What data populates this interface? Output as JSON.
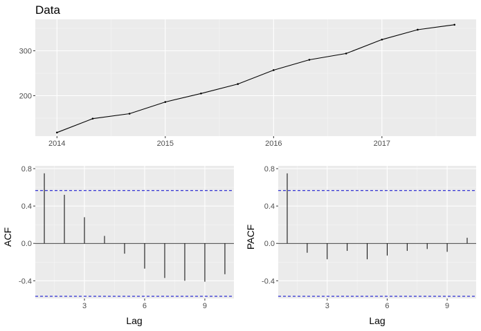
{
  "chart_data": [
    {
      "type": "line",
      "title": "Data",
      "xlabel": "",
      "ylabel": "",
      "xlim": [
        2013.8,
        2017.87
      ],
      "ylim": [
        110,
        370
      ],
      "x_ticks": [
        2014,
        2015,
        2016,
        2017
      ],
      "y_ticks": [
        200,
        300
      ],
      "grid": true,
      "x": [
        2014.0,
        2014.33,
        2014.67,
        2015.0,
        2015.33,
        2015.67,
        2016.0,
        2016.33,
        2016.67,
        2017.0,
        2017.33,
        2017.67
      ],
      "values": [
        118,
        149,
        160,
        186,
        205,
        226,
        257,
        280,
        294,
        325,
        347,
        358
      ],
      "series_color": "#000000"
    },
    {
      "type": "bar",
      "ylabel": "ACF",
      "xlabel": "Lag",
      "xlim": [
        0.55,
        10.45
      ],
      "ylim": [
        -0.59,
        0.83
      ],
      "x_ticks": [
        3,
        6,
        9
      ],
      "y_ticks": [
        -0.4,
        0.0,
        0.4,
        0.8
      ],
      "y_tick_labels": [
        "-0.4",
        "0.0",
        "0.4",
        "0.8"
      ],
      "grid": true,
      "lags": [
        1,
        2,
        3,
        4,
        5,
        6,
        7,
        8,
        9,
        10
      ],
      "values": [
        0.75,
        0.52,
        0.28,
        0.08,
        -0.11,
        -0.27,
        -0.37,
        -0.4,
        -0.41,
        -0.33
      ],
      "confidence_bound": 0.566,
      "bound_color": "#0000cc"
    },
    {
      "type": "bar",
      "ylabel": "PACF",
      "xlabel": "Lag",
      "xlim": [
        0.55,
        10.45
      ],
      "ylim": [
        -0.59,
        0.83
      ],
      "x_ticks": [
        3,
        6,
        9
      ],
      "y_ticks": [
        -0.4,
        0.0,
        0.4,
        0.8
      ],
      "y_tick_labels": [
        "-0.4",
        "0.0",
        "0.4",
        "0.8"
      ],
      "grid": true,
      "lags": [
        1,
        2,
        3,
        4,
        5,
        6,
        7,
        8,
        9,
        10
      ],
      "values": [
        0.75,
        -0.1,
        -0.17,
        -0.08,
        -0.17,
        -0.13,
        -0.08,
        -0.06,
        -0.09,
        0.06
      ],
      "confidence_bound": 0.566,
      "bound_color": "#0000cc"
    }
  ]
}
